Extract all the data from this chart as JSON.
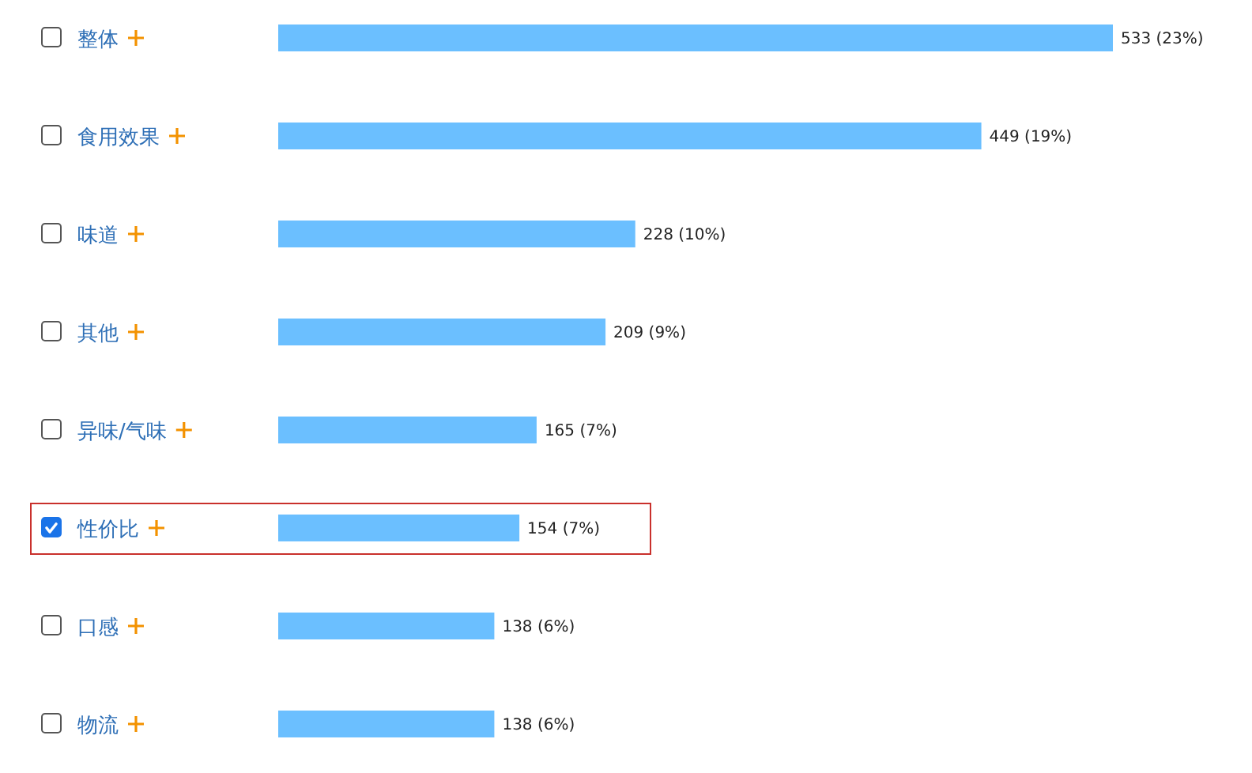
{
  "chart_data": {
    "type": "bar",
    "orientation": "horizontal",
    "color": "#6bbfff",
    "categories": [
      "整体",
      "食用效果",
      "味道",
      "其他",
      "异味/气味",
      "性价比",
      "口感",
      "物流"
    ],
    "values": [
      533,
      449,
      228,
      209,
      165,
      154,
      138,
      138
    ],
    "value_labels": [
      "533 (23%)",
      "449 (19%)",
      "228 (10%)",
      "209 (9%)",
      "165 (7%)",
      "154 (7%)",
      "138 (6%)",
      "138 (6%)"
    ]
  }
}
